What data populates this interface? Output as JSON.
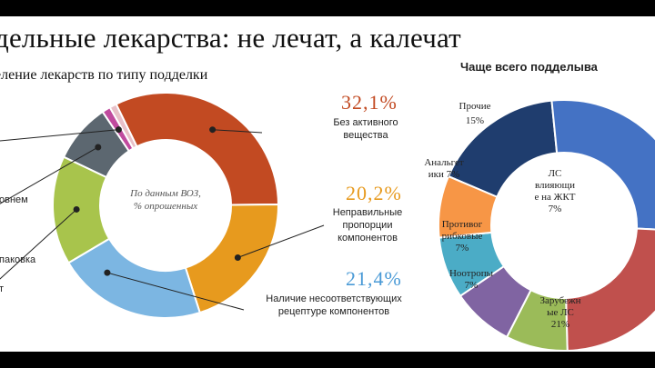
{
  "headline": "дельные лекарства: не лечат, а калечат",
  "chart_data": [
    {
      "type": "pie",
      "title": "еление лекарств по типу подделки",
      "center_text": [
        "По данным ВОЗ,",
        "% опрошенных"
      ],
      "slices": [
        {
          "label": "Без активного вещества",
          "value": 32.1,
          "value_text": "32,1%",
          "color": "#C24A22"
        },
        {
          "label": "Неправильные пропорции компонентов",
          "value": 20.2,
          "value_text": "20,2%",
          "color": "#E79A1E"
        },
        {
          "label": "Наличие несоответствующих рецептуре компонентов",
          "value": 21.4,
          "value_text": "21,4%",
          "color": "#7CB6E2"
        },
        {
          "label": "",
          "value": 15.6,
          "color": "#A8C44C"
        },
        {
          "label": "",
          "value": 8.5,
          "color": "#5C6770"
        },
        {
          "label": "",
          "value": 1.2,
          "color": "#C04A9E"
        },
        {
          "label": "",
          "value": 1.0,
          "color": "#E8C0C8"
        }
      ],
      "partial_labels": [
        "овнем",
        "паковка",
        "т"
      ]
    },
    {
      "type": "pie",
      "title": "Чаще всего подделыва",
      "slices": [
        {
          "label": "Прочие",
          "value": 15,
          "value_text": "15%",
          "color": "#1F3D6E"
        },
        {
          "label": "",
          "value": 24,
          "color": "#4472C4"
        },
        {
          "label": "Зарубежные ЛС",
          "label_lines": [
            "Зарубежн",
            "ые ЛС",
            "21%"
          ],
          "value": 21,
          "value_text": "21%",
          "color": "#C0504D"
        },
        {
          "label": "Ноотропы",
          "label_lines": [
            "Ноотропы",
            "7%"
          ],
          "value": 7,
          "value_text": "7%",
          "color": "#9BBB59"
        },
        {
          "label": "Противогрибковые",
          "label_lines": [
            "Противог",
            "рибковые",
            "7%"
          ],
          "value": 7,
          "value_text": "7%",
          "color": "#8064A2"
        },
        {
          "label": "ЛС влияющие на ЖКТ",
          "label_lines": [
            "ЛС",
            "влияющи",
            "е на ЖКТ",
            "7%"
          ],
          "value": 7,
          "value_text": "7%",
          "color": "#4BACC6"
        },
        {
          "label": "Анальгетики",
          "label_lines": [
            "Анальгет",
            "ики 7%"
          ],
          "value": 7,
          "value_text": "7%",
          "color": "#F79646"
        }
      ],
      "partial_labels": [
        "п"
      ]
    }
  ]
}
